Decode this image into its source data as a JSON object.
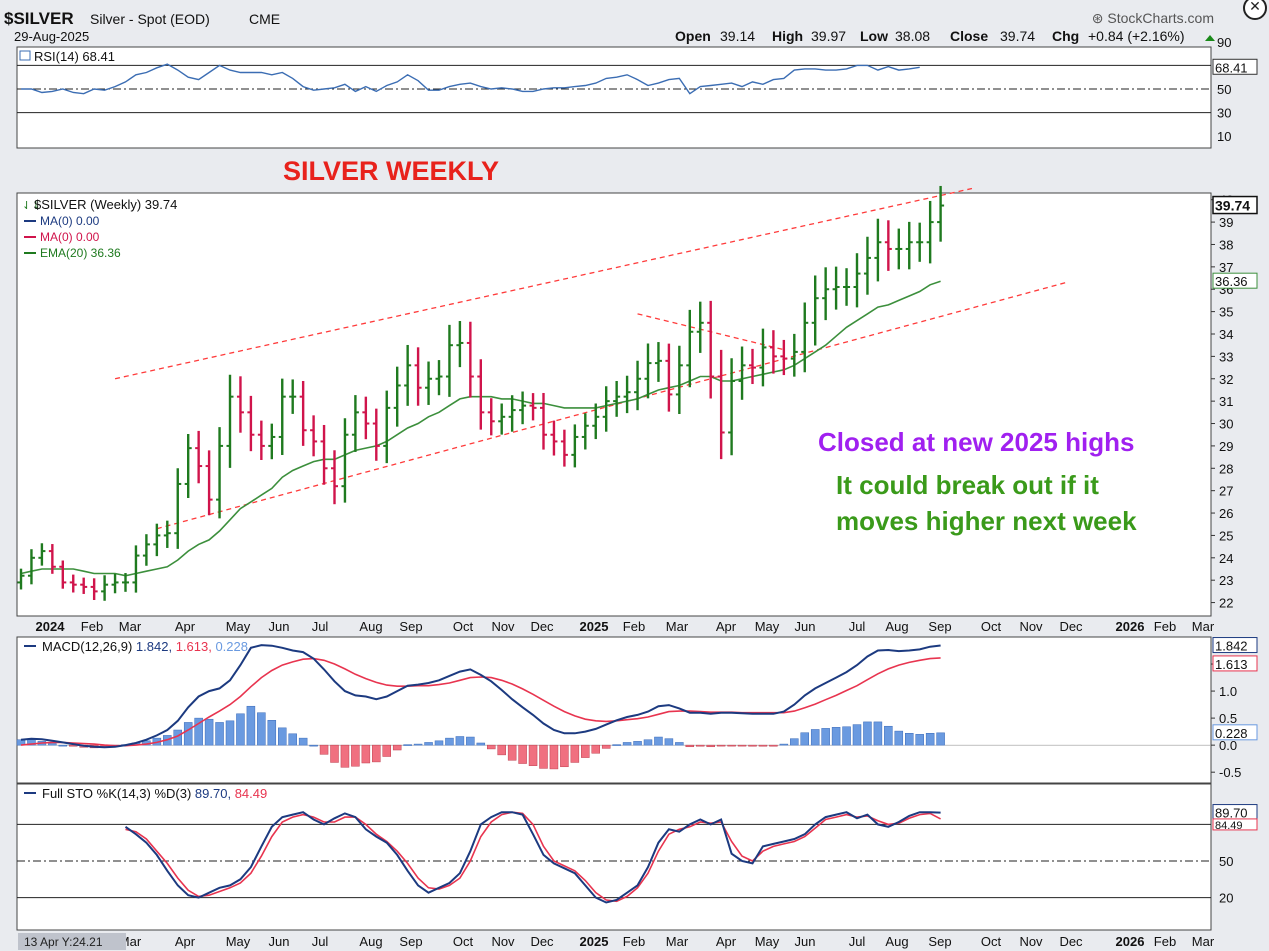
{
  "header": {
    "symbol": "$SILVER",
    "name": "Silver - Spot (EOD)",
    "exchange": "CME",
    "date": "29-Aug-2025",
    "brand": "StockCharts.com",
    "ohlc": {
      "open_label": "Open",
      "open": "39.14",
      "high_label": "High",
      "high": "39.97",
      "low_label": "Low",
      "low": "38.08",
      "close_label": "Close",
      "close": "39.74",
      "chg_label": "Chg",
      "chg": "+0.84 (+2.16%)",
      "chg_color": "#1a8a1a"
    }
  },
  "annotations": {
    "title": "SILVER WEEKLY",
    "title_color": "#e8221c",
    "note1": "Closed at new 2025 highs",
    "note1_color": "#a020f0",
    "note2a": "It could break out if it",
    "note2b": "moves higher next week",
    "note2_color": "#3a9a1a"
  },
  "footer": {
    "zoom_label": "13 Apr Y:24.21"
  },
  "colors": {
    "up_bar": "#1f7a1f",
    "down_bar": "#d0144b",
    "ema": "#3c8f3c",
    "rsi": "#3b6db3",
    "macd": "#1c3a80",
    "signal": "#e8344f",
    "hist_pos": "#6a9ae0",
    "hist_neg": "#f07080",
    "channel": "#ff3b3b",
    "sto_k": "#1c3a80",
    "sto_d": "#e8344f"
  },
  "chart_data": [
    {
      "type": "line",
      "panel": "RSI",
      "label": "RSI(14) 68.41",
      "current": "68.41",
      "ylim": [
        0,
        100
      ],
      "yticks": [
        "90",
        "70",
        "50",
        "30",
        "10"
      ],
      "reference_lines": [
        70,
        50,
        30
      ],
      "series": [
        {
          "name": "RSI(14)",
          "values": [
            50,
            50,
            47,
            48,
            50,
            47,
            46,
            50,
            49,
            52,
            56,
            62,
            64,
            68,
            71,
            66,
            60,
            58,
            64,
            70,
            66,
            64,
            64,
            64,
            62,
            64,
            59,
            52,
            49,
            50,
            51,
            54,
            48,
            52,
            48,
            53,
            56,
            62,
            57,
            49,
            49,
            52,
            54,
            55,
            52,
            50,
            51,
            50,
            48,
            48,
            50,
            51,
            51,
            52,
            53,
            55,
            59,
            60,
            62,
            58,
            53,
            55,
            58,
            59,
            46,
            52,
            53,
            54,
            55,
            52,
            56,
            54,
            58,
            59,
            66,
            67,
            67,
            66,
            66,
            67,
            70,
            70,
            66,
            69,
            66,
            67,
            68.41
          ]
        }
      ]
    },
    {
      "type": "candlestick",
      "panel": "price",
      "label": "$SILVER (Weekly) 39.74",
      "current": "39.74",
      "indicators": [
        "MA(0) 0.00",
        "MA(0) 0.00",
        "EMA(20) 36.36"
      ],
      "ema_current": "36.36",
      "ylim": [
        21.4,
        40.3
      ],
      "yticks": [
        "40",
        "39",
        "38",
        "37",
        "36",
        "35",
        "34",
        "33",
        "32",
        "31",
        "30",
        "29",
        "28",
        "27",
        "26",
        "25",
        "24",
        "23",
        "22"
      ],
      "x_labels": [
        "2024",
        "Feb",
        "Mar",
        "Apr",
        "May",
        "Jun",
        "Jul",
        "Aug",
        "Sep",
        "Oct",
        "Nov",
        "Dec",
        "2025",
        "Feb",
        "Mar",
        "Apr",
        "May",
        "Jun",
        "Jul",
        "Aug",
        "Sep",
        "Oct",
        "Nov",
        "Dec",
        "2026",
        "Feb",
        "Mar"
      ],
      "close": [
        23.2,
        24.0,
        24.3,
        23.6,
        22.9,
        22.8,
        22.7,
        22.5,
        22.8,
        22.9,
        22.9,
        24.1,
        24.6,
        25.0,
        25.1,
        27.3,
        28.9,
        28.1,
        26.6,
        29.0,
        31.2,
        30.5,
        29.5,
        29.0,
        29.4,
        31.2,
        31.2,
        29.7,
        29.2,
        28.0,
        27.2,
        29.5,
        30.5,
        30.0,
        29.0,
        30.7,
        31.7,
        32.6,
        31.6,
        32.0,
        32.1,
        33.5,
        33.6,
        32.1,
        30.5,
        30.1,
        30.3,
        30.6,
        30.8,
        30.7,
        29.5,
        29.2,
        28.6,
        29.4,
        29.9,
        30.3,
        31.0,
        31.2,
        31.4,
        32.0,
        32.7,
        32.8,
        31.3,
        32.6,
        34.1,
        34.5,
        32.1,
        29.6,
        31.9,
        32.6,
        32.5,
        33.4,
        33.0,
        32.9,
        33.2,
        34.5,
        35.6,
        36.0,
        36.1,
        36.1,
        36.7,
        37.4,
        38.1,
        37.8,
        37.8,
        38.1,
        38.1,
        39.0,
        39.74
      ],
      "ema": [
        23.3,
        23.4,
        23.5,
        23.5,
        23.5,
        23.5,
        23.4,
        23.3,
        23.3,
        23.3,
        23.2,
        23.3,
        23.4,
        23.5,
        23.6,
        23.9,
        24.3,
        24.6,
        24.8,
        25.2,
        25.7,
        26.2,
        26.5,
        26.8,
        27.1,
        27.6,
        27.9,
        28.1,
        28.3,
        28.4,
        28.4,
        28.6,
        28.8,
        28.9,
        29.0,
        29.2,
        29.5,
        29.8,
        30.0,
        30.3,
        30.5,
        30.8,
        31.1,
        31.2,
        31.2,
        31.2,
        31.1,
        31.1,
        31.0,
        30.9,
        30.9,
        30.8,
        30.7,
        30.7,
        30.7,
        30.7,
        30.8,
        30.9,
        31.0,
        31.1,
        31.3,
        31.5,
        31.6,
        31.7,
        31.9,
        32.1,
        32.1,
        31.9,
        31.9,
        32.0,
        32.1,
        32.2,
        32.3,
        32.4,
        32.6,
        32.9,
        33.2,
        33.5,
        33.9,
        34.3,
        34.6,
        34.9,
        35.2,
        35.3,
        35.5,
        35.7,
        35.9,
        36.2,
        36.36
      ],
      "volatility_range": [
        0.9,
        1.1,
        1.0,
        0.9,
        0.8,
        1.0,
        0.9,
        1.1,
        1.2,
        1.1,
        1.2,
        1.3,
        1.3,
        1.5,
        1.6,
        2.0,
        1.8,
        2.2,
        2.0,
        2.4,
        2.8,
        2.6,
        2.1,
        1.8,
        1.7,
        2.3,
        2.2,
        2.0,
        1.9,
        2.1,
        2.3,
        2.1,
        2.2,
        2.0,
        1.9,
        2.2,
        2.4,
        2.6,
        2.3,
        2.2,
        2.1,
        2.6,
        2.8,
        2.7,
        2.2,
        1.8,
        1.7,
        1.9,
        1.8,
        1.6,
        1.9,
        1.8,
        1.5,
        1.6,
        1.6,
        1.7,
        1.9,
        2.0,
        2.1,
        2.3,
        2.5,
        2.4,
        2.2,
        2.5,
        2.8,
        2.7,
        2.8,
        3.4,
        2.9,
        2.4,
        2.1,
        2.4,
        2.2,
        2.1,
        2.3,
        2.6,
        2.9,
        2.8,
        2.6,
        2.4,
        2.6,
        2.7,
        3.0,
        2.8,
        2.6,
        2.6,
        2.5,
        2.7,
        2.5
      ],
      "channel_upper": [
        [
          9,
          32.0
        ],
        [
          46,
          35.0
        ],
        [
          91,
          40.5
        ]
      ],
      "channel_lower": [
        [
          13,
          25.3
        ],
        [
          54,
          29.0
        ],
        [
          100,
          36.3
        ]
      ],
      "triangle_upper": [
        [
          59,
          34.9
        ],
        [
          73,
          33.3
        ]
      ]
    },
    {
      "type": "line",
      "panel": "MACD",
      "label": "MACD(12,26,9)",
      "values_label": [
        "1.842",
        "1.613",
        "0.228"
      ],
      "ylim": [
        -0.7,
        2.0
      ],
      "yticks": [
        "1.5",
        "1.0",
        "0.5",
        "0.0",
        "-0.5"
      ],
      "series": [
        {
          "name": "MACD",
          "values": [
            0.1,
            0.12,
            0.11,
            0.08,
            0.05,
            0.02,
            -0.01,
            -0.03,
            -0.04,
            -0.03,
            0.0,
            0.04,
            0.1,
            0.18,
            0.28,
            0.45,
            0.7,
            0.9,
            1.0,
            1.05,
            1.2,
            1.48,
            1.8,
            1.85,
            1.84,
            1.8,
            1.75,
            1.72,
            1.6,
            1.4,
            1.18,
            1.0,
            0.92,
            0.9,
            0.85,
            0.9,
            1.0,
            1.1,
            1.12,
            1.15,
            1.2,
            1.28,
            1.36,
            1.4,
            1.3,
            1.18,
            1.02,
            0.85,
            0.7,
            0.56,
            0.4,
            0.28,
            0.22,
            0.22,
            0.25,
            0.3,
            0.38,
            0.46,
            0.52,
            0.56,
            0.62,
            0.72,
            0.74,
            0.68,
            0.6,
            0.6,
            0.58,
            0.6,
            0.6,
            0.59,
            0.58,
            0.58,
            0.58,
            0.62,
            0.75,
            0.92,
            1.05,
            1.15,
            1.25,
            1.35,
            1.48,
            1.64,
            1.75,
            1.76,
            1.74,
            1.75,
            1.77,
            1.82,
            1.842
          ]
        },
        {
          "name": "Signal",
          "values": [
            0.0,
            0.02,
            0.04,
            0.05,
            0.05,
            0.04,
            0.03,
            0.02,
            0.0,
            -0.01,
            -0.01,
            0.0,
            0.02,
            0.05,
            0.1,
            0.17,
            0.28,
            0.4,
            0.52,
            0.63,
            0.75,
            0.9,
            1.08,
            1.25,
            1.38,
            1.48,
            1.54,
            1.59,
            1.6,
            1.57,
            1.5,
            1.41,
            1.31,
            1.23,
            1.16,
            1.11,
            1.09,
            1.09,
            1.1,
            1.1,
            1.12,
            1.15,
            1.2,
            1.25,
            1.26,
            1.25,
            1.2,
            1.13,
            1.04,
            0.94,
            0.83,
            0.72,
            0.62,
            0.54,
            0.48,
            0.45,
            0.44,
            0.45,
            0.47,
            0.49,
            0.52,
            0.57,
            0.62,
            0.63,
            0.63,
            0.62,
            0.61,
            0.61,
            0.61,
            0.6,
            0.6,
            0.6,
            0.6,
            0.6,
            0.63,
            0.69,
            0.76,
            0.84,
            0.92,
            1.01,
            1.1,
            1.21,
            1.32,
            1.41,
            1.48,
            1.53,
            1.57,
            1.6,
            1.613
          ]
        },
        {
          "name": "Histogram",
          "values": [
            0.1,
            0.1,
            0.07,
            0.03,
            0.0,
            -0.02,
            -0.04,
            -0.05,
            -0.04,
            -0.02,
            0.01,
            0.04,
            0.08,
            0.13,
            0.18,
            0.28,
            0.42,
            0.5,
            0.48,
            0.42,
            0.45,
            0.58,
            0.72,
            0.6,
            0.46,
            0.32,
            0.21,
            0.13,
            0.0,
            -0.17,
            -0.32,
            -0.41,
            -0.39,
            -0.33,
            -0.31,
            -0.21,
            -0.09,
            0.01,
            0.02,
            0.05,
            0.08,
            0.13,
            0.16,
            0.15,
            0.04,
            -0.07,
            -0.18,
            -0.28,
            -0.34,
            -0.38,
            -0.43,
            -0.44,
            -0.4,
            -0.32,
            -0.23,
            -0.15,
            -0.06,
            0.01,
            0.05,
            0.07,
            0.1,
            0.15,
            0.12,
            0.05,
            -0.03,
            -0.02,
            -0.03,
            -0.01,
            -0.01,
            -0.01,
            -0.02,
            -0.02,
            -0.02,
            0.02,
            0.12,
            0.23,
            0.29,
            0.31,
            0.33,
            0.34,
            0.38,
            0.43,
            0.43,
            0.35,
            0.26,
            0.22,
            0.2,
            0.22,
            0.228
          ]
        }
      ]
    },
    {
      "type": "line",
      "panel": "Full STO",
      "label": "Full STO %K(14,3) %D(3)",
      "values_label": [
        "89.70",
        "84.49"
      ],
      "ylim": [
        0,
        100
      ],
      "yticks": [
        "50",
        "20"
      ],
      "reference_lines": [
        80,
        50,
        20
      ],
      "series": [
        {
          "name": "%K",
          "values": [
            78,
            72,
            65,
            55,
            42,
            30,
            22,
            20,
            24,
            28,
            30,
            35,
            45,
            62,
            78,
            86,
            88,
            90,
            84,
            80,
            85,
            89,
            86,
            76,
            70,
            65,
            55,
            42,
            30,
            24,
            28,
            32,
            40,
            58,
            80,
            86,
            90,
            90,
            88,
            72,
            55,
            48,
            44,
            40,
            30,
            20,
            16,
            18,
            24,
            30,
            45,
            65,
            76,
            74,
            80,
            84,
            80,
            84,
            56,
            50,
            48,
            62,
            64,
            66,
            68,
            72,
            80,
            86,
            88,
            90,
            85,
            88,
            80,
            78,
            82,
            87,
            90,
            90,
            89.7
          ]
        },
        {
          "name": "%D",
          "values": [
            76,
            74,
            68,
            58,
            48,
            36,
            26,
            21,
            22,
            25,
            28,
            32,
            40,
            54,
            70,
            82,
            86,
            88,
            86,
            82,
            82,
            86,
            86,
            80,
            72,
            66,
            58,
            48,
            36,
            28,
            27,
            30,
            36,
            50,
            70,
            82,
            88,
            90,
            89,
            80,
            62,
            50,
            46,
            42,
            34,
            24,
            18,
            17,
            21,
            28,
            40,
            58,
            72,
            76,
            78,
            82,
            81,
            82,
            66,
            54,
            50,
            58,
            62,
            64,
            66,
            70,
            77,
            84,
            86,
            88,
            86,
            87,
            83,
            80,
            81,
            85,
            88,
            89,
            84.49
          ]
        }
      ]
    }
  ]
}
